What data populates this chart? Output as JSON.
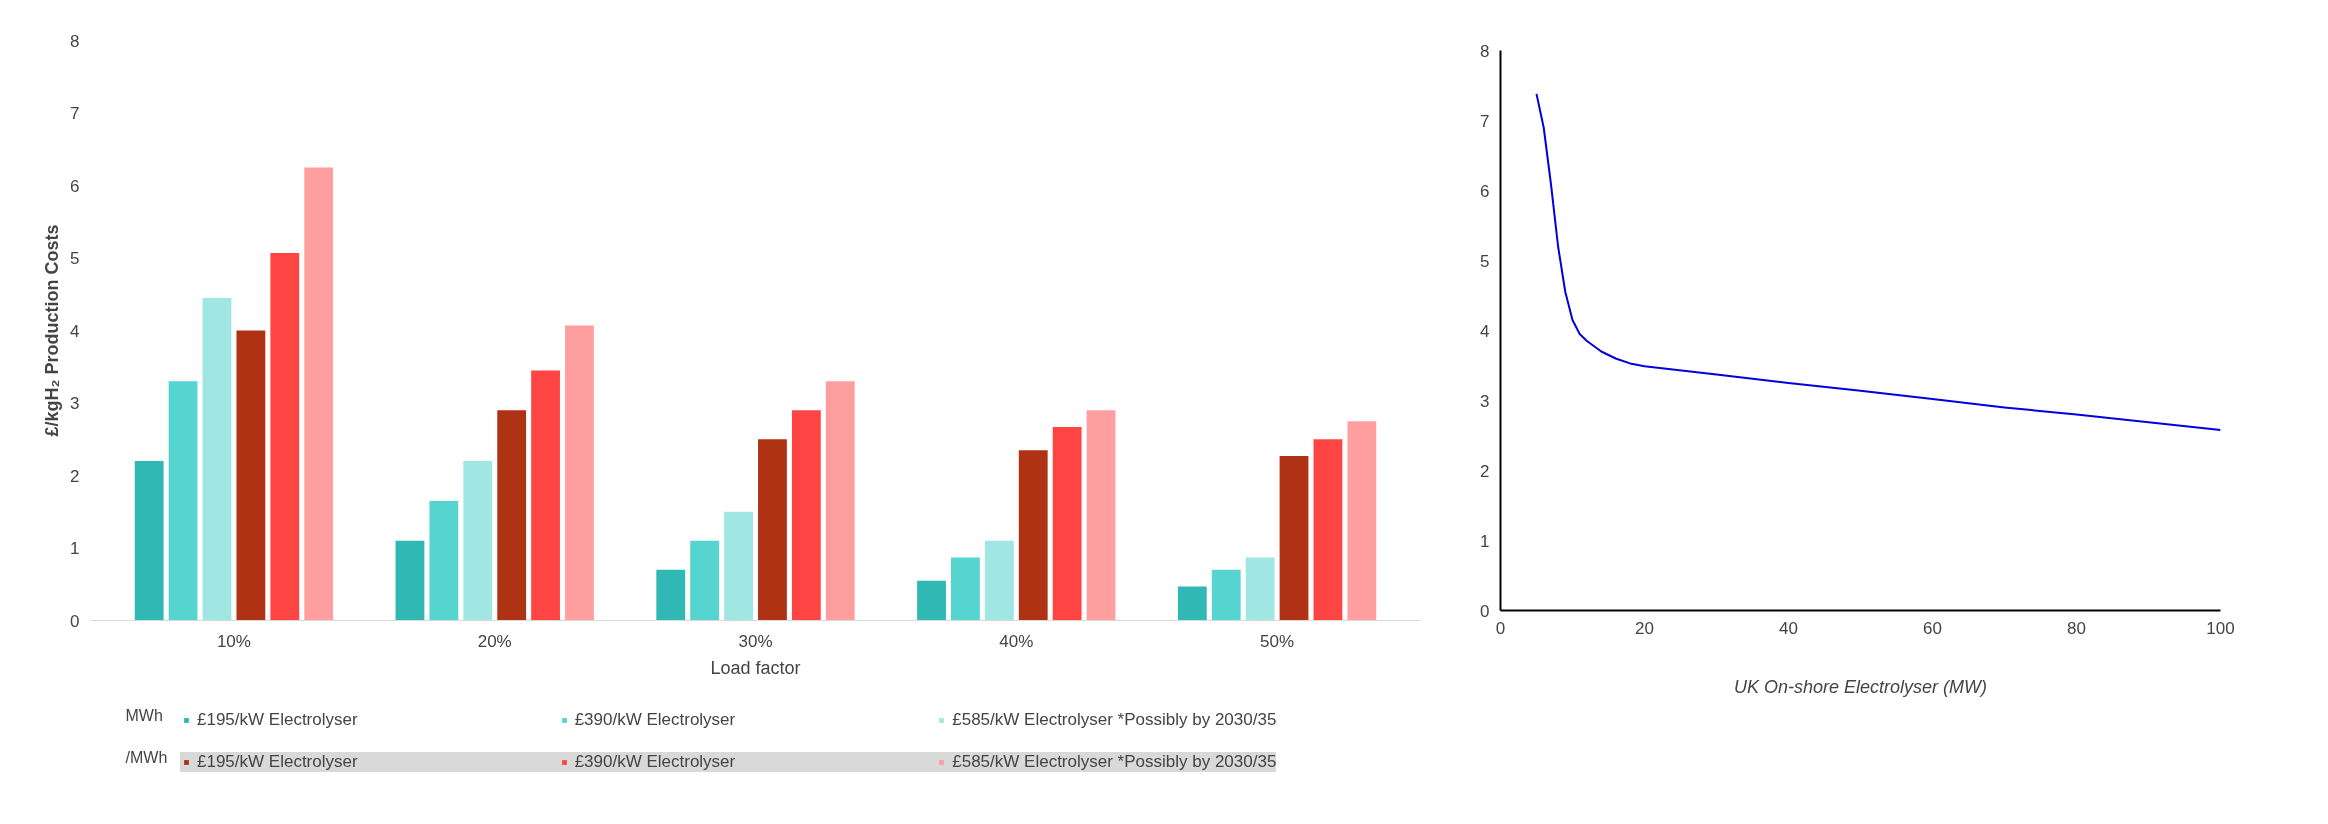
{
  "chart_data": [
    {
      "type": "bar",
      "ylabel": "£/kgH₂ Production Costs",
      "xlabel": "Load factor",
      "categories": [
        "10%",
        "20%",
        "30%",
        "40%",
        "50%"
      ],
      "series": [
        {
          "name": "£195/kW Electrolyser",
          "color": "#30b8b4",
          "values": [
            2.2,
            1.1,
            0.7,
            0.55,
            0.47
          ]
        },
        {
          "name": "£390/kW Electrolyser",
          "color": "#55d4d0",
          "values": [
            3.3,
            1.65,
            1.1,
            0.87,
            0.7
          ]
        },
        {
          "name": "£585/kW Electrolyser *Possibly by 2030/35",
          "color": "#a0e6e3",
          "values": [
            4.45,
            2.2,
            1.5,
            1.1,
            0.87
          ]
        },
        {
          "name": "£195/kW Electrolyser",
          "color": "#b03214",
          "values": [
            4.0,
            2.9,
            2.5,
            2.35,
            2.27
          ]
        },
        {
          "name": "£390/kW Electrolyser",
          "color": "#ff4444",
          "values": [
            5.07,
            3.45,
            2.9,
            2.67,
            2.5
          ]
        },
        {
          "name": "£585/kW Electrolyser *Possibly by 2030/35",
          "color": "#ff9e9e",
          "values": [
            6.25,
            4.07,
            3.3,
            2.9,
            2.75
          ]
        }
      ],
      "ylim": [
        0,
        8
      ],
      "yticks": [
        0,
        1,
        2,
        3,
        4,
        5,
        6,
        7,
        8
      ],
      "grid": false,
      "legend": "bottom",
      "annotations": [
        "MWh",
        "/MWh"
      ]
    },
    {
      "type": "line",
      "xlabel": "UK On-shore Electrolyser (MW)",
      "x": [
        5,
        6,
        7,
        8,
        9,
        10,
        11,
        12,
        14,
        16,
        18,
        20,
        30,
        40,
        50,
        60,
        70,
        80,
        90,
        100
      ],
      "series": [
        {
          "color": "#0000dd",
          "values": [
            7.38,
            6.9,
            6.1,
            5.2,
            4.55,
            4.15,
            3.95,
            3.85,
            3.7,
            3.6,
            3.53,
            3.49,
            3.37,
            3.25,
            3.14,
            3.02,
            2.9,
            2.8,
            2.69,
            2.58
          ]
        }
      ],
      "xlim": [
        0,
        100
      ],
      "xticks": [
        0,
        20,
        40,
        60,
        80,
        100
      ],
      "ylim": [
        0,
        8
      ],
      "yticks": [
        0,
        1,
        2,
        3,
        4,
        5,
        6,
        7,
        8
      ],
      "grid": false
    }
  ]
}
